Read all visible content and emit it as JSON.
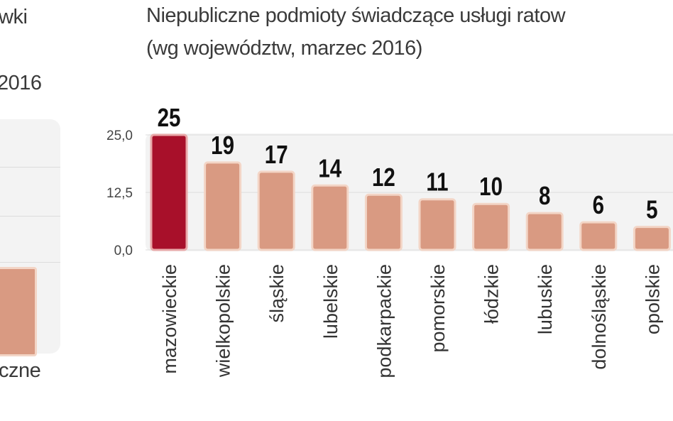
{
  "left_fragment": {
    "title_line1": "wki",
    "title_line2": "2016",
    "category": "czne"
  },
  "colors": {
    "bar": "#d99a82",
    "bar_border": "#f3d5c6",
    "highlight": "#a8102a",
    "grid": "#dcdcdc"
  },
  "chart_data": {
    "type": "bar",
    "title": "Niepubliczne podmioty świadczące usługi ratow",
    "subtitle": "(wg województw, marzec 2016)",
    "categories": [
      "mazowieckie",
      "wielkopolskie",
      "śląskie",
      "lubelskie",
      "podkarpackie",
      "pomorskie",
      "łódzkie",
      "lubuskie",
      "dolnośląskie",
      "opolskie"
    ],
    "values": [
      25,
      19,
      17,
      14,
      12,
      11,
      10,
      8,
      6,
      5
    ],
    "value_labels": [
      "25",
      "19",
      "17",
      "14",
      "12",
      "11",
      "10",
      "8",
      "6",
      "5"
    ],
    "highlight_index": 0,
    "yticks": [
      0,
      12.5,
      25
    ],
    "ytick_labels": [
      "0,0",
      "12,5",
      "25,0"
    ],
    "ylim": [
      0,
      25
    ],
    "grid": true,
    "xlabel": "",
    "ylabel": ""
  }
}
